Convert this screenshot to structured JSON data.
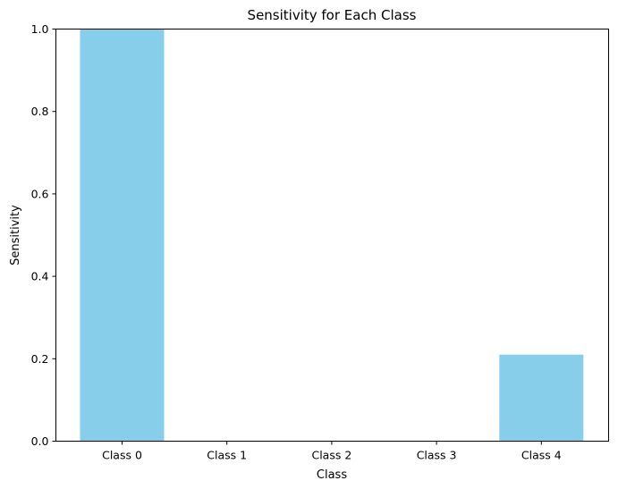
{
  "chart_data": {
    "type": "bar",
    "title": "Sensitivity for Each Class",
    "xlabel": "Class",
    "ylabel": "Sensitivity",
    "categories": [
      "Class 0",
      "Class 1",
      "Class 2",
      "Class 3",
      "Class 4"
    ],
    "values": [
      1.0,
      0.0,
      0.0,
      0.0,
      0.21
    ],
    "ylim": [
      0,
      1.0
    ],
    "yticks": [
      0.0,
      0.2,
      0.4,
      0.6,
      0.8,
      1.0
    ],
    "ytick_labels": [
      "0.0",
      "0.2",
      "0.4",
      "0.6",
      "0.8",
      "1.0"
    ],
    "bar_color": "#87CEEB",
    "grid": false,
    "legend": "none"
  }
}
